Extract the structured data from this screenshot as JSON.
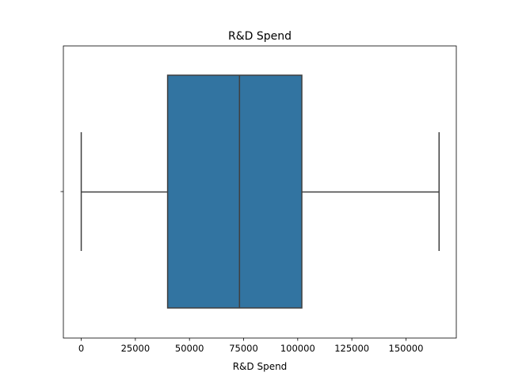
{
  "chart_data": {
    "type": "box",
    "title": "R&D Spend",
    "xlabel": "R&D Spend",
    "ylabel": "",
    "orientation": "horizontal",
    "xlim": [
      -8250,
      173250
    ],
    "xticks": [
      0,
      25000,
      50000,
      75000,
      100000,
      125000,
      150000
    ],
    "xtick_labels": [
      "0",
      "25000",
      "50000",
      "75000",
      "100000",
      "125000",
      "150000"
    ],
    "grid": false,
    "series": [
      {
        "min": 0,
        "q1": 39900,
        "median": 73100,
        "q3": 101900,
        "max": 165300,
        "color": "#3274a1"
      }
    ]
  }
}
